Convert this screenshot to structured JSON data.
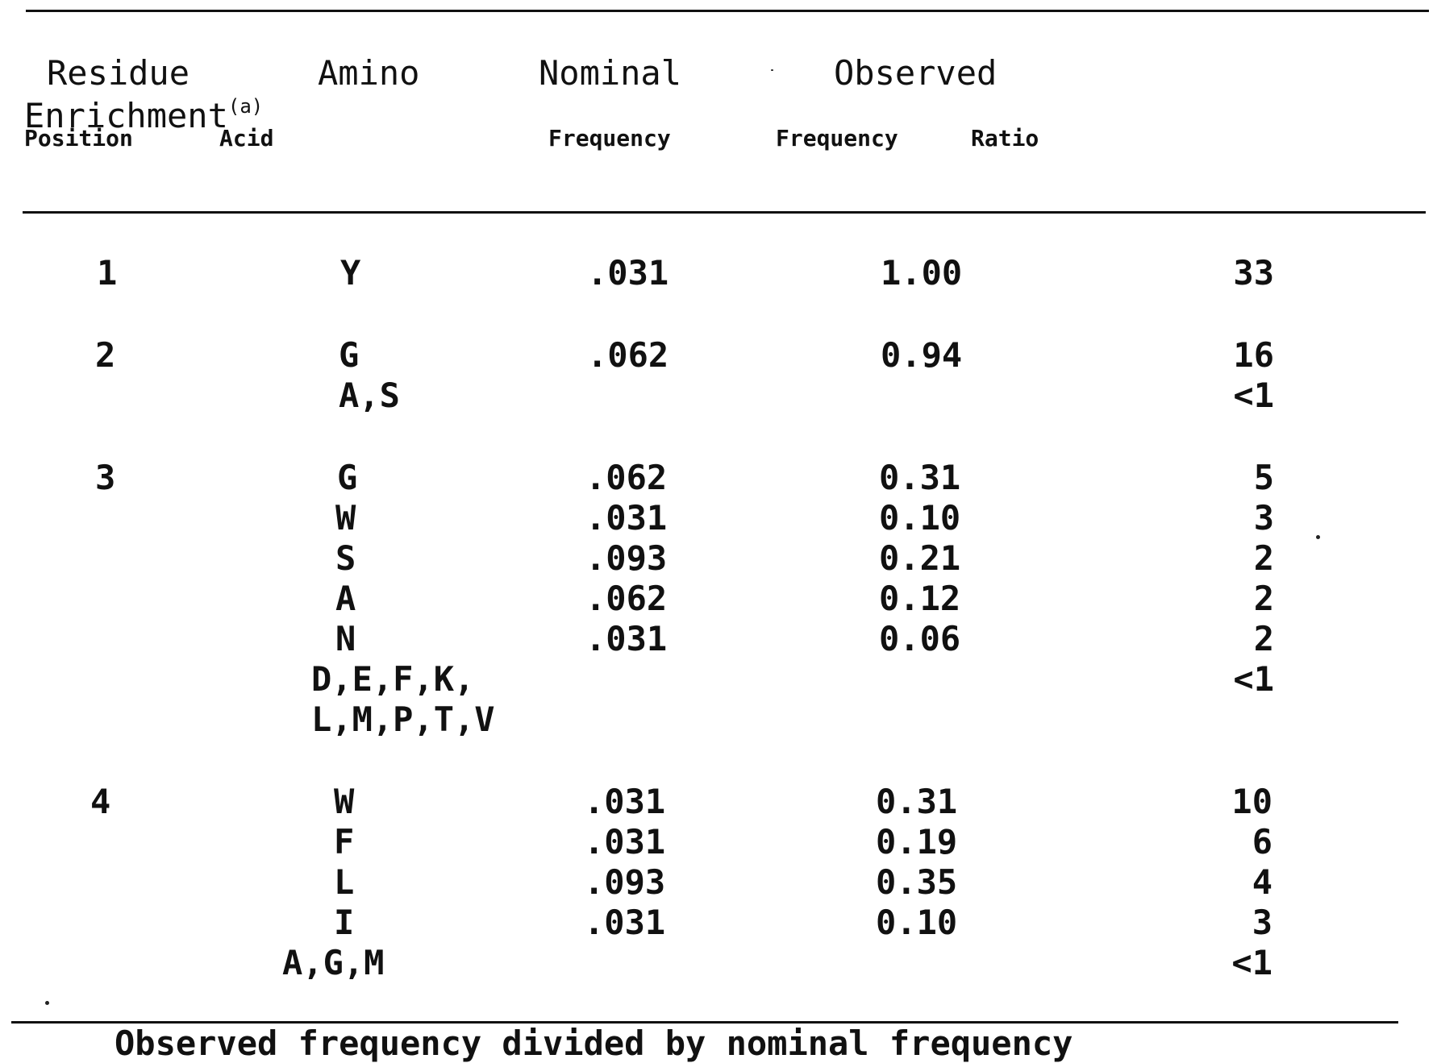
{
  "header": {
    "residue": "Residue",
    "amino": "Amino",
    "nominal": "Nominal",
    "observed": "Observed",
    "enrichment": "Enrichment",
    "enrichment_note": "(a)",
    "position": "Position",
    "acid": "Acid",
    "frequency_nominal": "Frequency",
    "frequency_observed": "Frequency",
    "ratio": "Ratio"
  },
  "rows": [
    {
      "position": "1",
      "acid": "Y",
      "nominal": ".031",
      "observed": "1.00",
      "enrichment": "33"
    },
    {
      "position": "2",
      "acid": "G",
      "nominal": ".062",
      "observed": "0.94",
      "enrichment": "16"
    },
    {
      "position": "",
      "acid": "A,S",
      "nominal": "",
      "observed": "",
      "enrichment": "<1"
    },
    {
      "position": "3",
      "acid": "G",
      "nominal": ".062",
      "observed": "0.31",
      "enrichment": "5"
    },
    {
      "position": "",
      "acid": "W",
      "nominal": ".031",
      "observed": "0.10",
      "enrichment": "3"
    },
    {
      "position": "",
      "acid": "S",
      "nominal": ".093",
      "observed": "0.21",
      "enrichment": "2"
    },
    {
      "position": "",
      "acid": "A",
      "nominal": ".062",
      "observed": "0.12",
      "enrichment": "2"
    },
    {
      "position": "",
      "acid": "N",
      "nominal": ".031",
      "observed": "0.06",
      "enrichment": "2"
    },
    {
      "position": "",
      "acid": "D,E,F,K,",
      "nominal": "",
      "observed": "",
      "enrichment": "<1"
    },
    {
      "position": "",
      "acid": "L,M,P,T,V",
      "nominal": "",
      "observed": "",
      "enrichment": ""
    },
    {
      "position": "4",
      "acid": "W",
      "nominal": ".031",
      "observed": "0.31",
      "enrichment": "10"
    },
    {
      "position": "",
      "acid": "F",
      "nominal": ".031",
      "observed": "0.19",
      "enrichment": "6"
    },
    {
      "position": "",
      "acid": "L",
      "nominal": ".093",
      "observed": "0.35",
      "enrichment": "4"
    },
    {
      "position": "",
      "acid": "I",
      "nominal": ".031",
      "observed": "0.10",
      "enrichment": "3"
    },
    {
      "position": "",
      "acid": "A,G,M",
      "nominal": "",
      "observed": "",
      "enrichment": "<1"
    }
  ],
  "footer_fragment": "Observed frequency divided by nominal frequency"
}
